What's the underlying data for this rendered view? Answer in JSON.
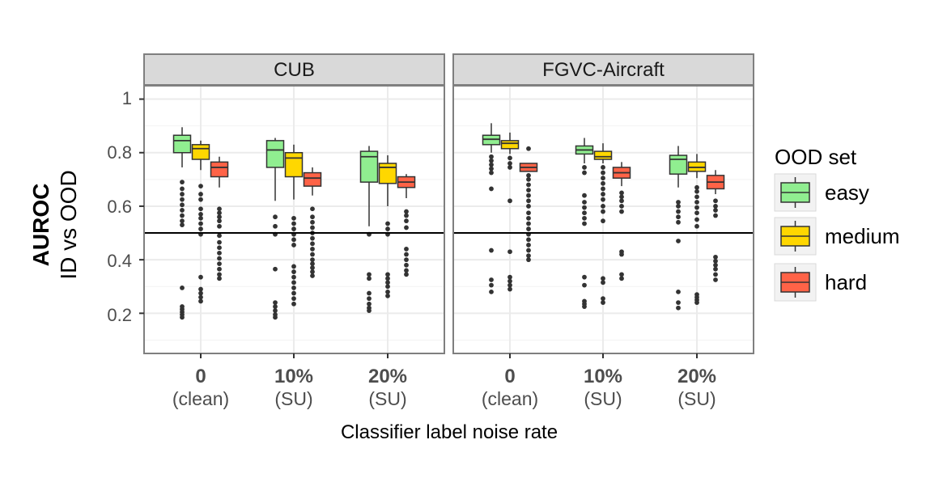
{
  "chart_data": {
    "type": "box",
    "facets": [
      "CUB",
      "FGVC-Aircraft"
    ],
    "categories": [
      {
        "main": "0",
        "sub": "(clean)"
      },
      {
        "main": "10%",
        "sub": "(SU)"
      },
      {
        "main": "20%",
        "sub": "(SU)"
      }
    ],
    "xlabel": "Classifier label noise rate",
    "ylabel_bold": "AUROC",
    "ylabel": "ID vs OOD",
    "ylim": [
      0.05,
      1.05
    ],
    "yticks": [
      0.2,
      0.4,
      0.6,
      0.8,
      1
    ],
    "ytick_labels": [
      "0.2",
      "0.4",
      "0.6",
      "0.8",
      "1"
    ],
    "reference_line": 0.5,
    "legend": {
      "title": "OOD set",
      "entries": [
        {
          "name": "easy",
          "color": "#90ee90"
        },
        {
          "name": "medium",
          "color": "#ffd700"
        },
        {
          "name": "hard",
          "color": "#ff6347"
        }
      ]
    },
    "boxes": [
      {
        "facet": 0,
        "category": 0,
        "group": 0,
        "whisker_low": 0.745,
        "q1": 0.8,
        "median": 0.845,
        "q3": 0.865,
        "whisker_high": 0.895,
        "outliers": [
          0.69,
          0.665,
          0.645,
          0.625,
          0.605,
          0.585,
          0.565,
          0.545,
          0.53,
          0.295,
          0.225,
          0.215,
          0.205,
          0.195,
          0.185
        ]
      },
      {
        "facet": 0,
        "category": 0,
        "group": 1,
        "whisker_low": 0.735,
        "q1": 0.775,
        "median": 0.815,
        "q3": 0.83,
        "whisker_high": 0.845,
        "outliers": [
          0.675,
          0.645,
          0.625,
          0.59,
          0.57,
          0.555,
          0.535,
          0.515,
          0.495,
          0.335,
          0.29,
          0.275,
          0.26,
          0.245
        ]
      },
      {
        "facet": 0,
        "category": 0,
        "group": 2,
        "whisker_low": 0.67,
        "q1": 0.71,
        "median": 0.745,
        "q3": 0.765,
        "whisker_high": 0.785,
        "outliers": [
          0.59,
          0.575,
          0.56,
          0.545,
          0.525,
          0.49,
          0.465,
          0.445,
          0.425,
          0.405,
          0.385,
          0.365,
          0.345,
          0.33
        ]
      },
      {
        "facet": 0,
        "category": 1,
        "group": 0,
        "whisker_low": 0.62,
        "q1": 0.745,
        "median": 0.81,
        "q3": 0.845,
        "whisker_high": 0.855,
        "outliers": [
          0.56,
          0.525,
          0.495,
          0.365,
          0.24,
          0.225,
          0.21,
          0.195,
          0.185
        ]
      },
      {
        "facet": 0,
        "category": 1,
        "group": 1,
        "whisker_low": 0.625,
        "q1": 0.71,
        "median": 0.78,
        "q3": 0.8,
        "whisker_high": 0.83,
        "outliers": [
          0.555,
          0.535,
          0.515,
          0.495,
          0.475,
          0.455,
          0.375,
          0.355,
          0.335,
          0.315,
          0.295,
          0.275,
          0.255,
          0.235
        ]
      },
      {
        "facet": 0,
        "category": 1,
        "group": 2,
        "whisker_low": 0.64,
        "q1": 0.675,
        "median": 0.705,
        "q3": 0.725,
        "whisker_high": 0.745,
        "outliers": [
          0.59,
          0.56,
          0.54,
          0.52,
          0.5,
          0.48,
          0.46,
          0.44,
          0.42,
          0.4,
          0.385,
          0.37,
          0.355,
          0.34
        ]
      },
      {
        "facet": 0,
        "category": 2,
        "group": 0,
        "whisker_low": 0.525,
        "q1": 0.69,
        "median": 0.785,
        "q3": 0.805,
        "whisker_high": 0.825,
        "outliers": [
          0.495,
          0.345,
          0.33,
          0.275,
          0.255,
          0.235,
          0.22,
          0.21
        ]
      },
      {
        "facet": 0,
        "category": 2,
        "group": 1,
        "whisker_low": 0.6,
        "q1": 0.685,
        "median": 0.745,
        "q3": 0.76,
        "whisker_high": 0.79,
        "outliers": [
          0.535,
          0.515,
          0.495,
          0.345,
          0.33,
          0.315,
          0.3,
          0.28,
          0.265
        ]
      },
      {
        "facet": 0,
        "category": 2,
        "group": 2,
        "whisker_low": 0.63,
        "q1": 0.67,
        "median": 0.69,
        "q3": 0.71,
        "whisker_high": 0.72,
        "outliers": [
          0.58,
          0.565,
          0.545,
          0.52,
          0.44,
          0.42,
          0.4,
          0.38,
          0.36,
          0.345
        ]
      },
      {
        "facet": 1,
        "category": 0,
        "group": 0,
        "whisker_low": 0.8,
        "q1": 0.83,
        "median": 0.85,
        "q3": 0.865,
        "whisker_high": 0.91,
        "outliers": [
          0.785,
          0.77,
          0.755,
          0.74,
          0.725,
          0.665,
          0.435,
          0.325,
          0.305,
          0.28
        ]
      },
      {
        "facet": 1,
        "category": 0,
        "group": 1,
        "whisker_low": 0.795,
        "q1": 0.815,
        "median": 0.835,
        "q3": 0.845,
        "whisker_high": 0.875,
        "outliers": [
          0.78,
          0.76,
          0.745,
          0.62,
          0.43,
          0.335,
          0.32,
          0.305,
          0.29
        ]
      },
      {
        "facet": 1,
        "category": 0,
        "group": 2,
        "whisker_low": 0.73,
        "q1": 0.73,
        "median": 0.745,
        "q3": 0.76,
        "whisker_high": 0.76,
        "outliers": [
          0.815,
          0.715,
          0.7,
          0.68,
          0.66,
          0.64,
          0.62,
          0.6,
          0.575,
          0.555,
          0.535,
          0.515,
          0.495,
          0.475,
          0.455,
          0.435,
          0.415,
          0.4
        ]
      },
      {
        "facet": 1,
        "category": 1,
        "group": 0,
        "whisker_low": 0.76,
        "q1": 0.795,
        "median": 0.81,
        "q3": 0.825,
        "whisker_high": 0.855,
        "outliers": [
          0.745,
          0.725,
          0.64,
          0.615,
          0.595,
          0.575,
          0.555,
          0.535,
          0.335,
          0.305,
          0.245,
          0.235,
          0.225
        ]
      },
      {
        "facet": 1,
        "category": 1,
        "group": 1,
        "whisker_low": 0.76,
        "q1": 0.775,
        "median": 0.785,
        "q3": 0.805,
        "whisker_high": 0.835,
        "outliers": [
          0.745,
          0.725,
          0.705,
          0.685,
          0.665,
          0.645,
          0.625,
          0.6,
          0.58,
          0.545,
          0.33,
          0.315,
          0.255,
          0.24
        ]
      },
      {
        "facet": 1,
        "category": 1,
        "group": 2,
        "whisker_low": 0.675,
        "q1": 0.705,
        "median": 0.725,
        "q3": 0.745,
        "whisker_high": 0.765,
        "outliers": [
          0.65,
          0.635,
          0.62,
          0.6,
          0.58,
          0.43,
          0.42,
          0.345,
          0.33
        ]
      },
      {
        "facet": 1,
        "category": 2,
        "group": 0,
        "whisker_low": 0.67,
        "q1": 0.72,
        "median": 0.775,
        "q3": 0.79,
        "whisker_high": 0.825,
        "outliers": [
          0.615,
          0.6,
          0.58,
          0.56,
          0.54,
          0.47,
          0.28,
          0.24,
          0.22
        ]
      },
      {
        "facet": 1,
        "category": 2,
        "group": 1,
        "whisker_low": 0.705,
        "q1": 0.73,
        "median": 0.745,
        "q3": 0.765,
        "whisker_high": 0.795,
        "outliers": [
          0.67,
          0.655,
          0.635,
          0.615,
          0.595,
          0.575,
          0.55,
          0.525,
          0.27,
          0.26,
          0.25,
          0.24
        ]
      },
      {
        "facet": 1,
        "category": 2,
        "group": 2,
        "whisker_low": 0.645,
        "q1": 0.665,
        "median": 0.69,
        "q3": 0.715,
        "whisker_high": 0.735,
        "outliers": [
          0.62,
          0.6,
          0.585,
          0.565,
          0.41,
          0.395,
          0.38,
          0.365,
          0.345,
          0.325
        ]
      }
    ]
  }
}
